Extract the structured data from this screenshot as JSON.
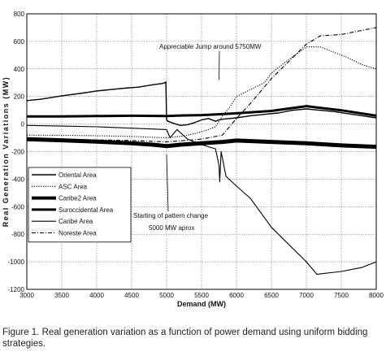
{
  "caption": "Figure 1. Real generation variation as a function of power demand using uniform bidding strategies.",
  "chart_data": {
    "type": "line",
    "title": "",
    "xlabel": "Demand (MW)",
    "ylabel": "Real Generation Variations (MW)",
    "xlim": [
      3000,
      8000
    ],
    "ylim": [
      -1200,
      800
    ],
    "xticks": [
      "3000",
      "3500",
      "4000",
      "4500",
      "5000",
      "5500",
      "6000",
      "6500",
      "7000",
      "7500",
      "8000"
    ],
    "yticks": [
      "800",
      "600",
      "400",
      "200",
      "0",
      "-200",
      "-400",
      "-600",
      "-800",
      "-1000",
      "-1200"
    ],
    "grid": true,
    "legend_position": "bottom-left",
    "annotations": [
      {
        "text": "Appreciable Jump around 5750MW",
        "x": 5750,
        "y": 320
      },
      {
        "text": "Starting of pattern change",
        "text2": "5000 MW aprox",
        "x": 5000,
        "y": -300
      }
    ],
    "series": [
      {
        "name": "Oriental Area",
        "style": "solid",
        "width": 1.4,
        "x": [
          3000,
          3200,
          3500,
          3800,
          4000,
          4200,
          4400,
          4600,
          4800,
          4950,
          4990,
          5000,
          5020,
          5100,
          5200,
          5300,
          5400,
          5500,
          5600,
          5700,
          5750,
          5800,
          5900,
          6000,
          6200,
          6400,
          6600,
          6800,
          7000,
          7200,
          7400,
          7600,
          7800,
          8000
        ],
        "y": [
          170,
          180,
          205,
          225,
          240,
          250,
          260,
          268,
          285,
          295,
          305,
          30,
          20,
          5,
          -10,
          -5,
          10,
          30,
          40,
          20,
          30,
          35,
          40,
          45,
          60,
          70,
          80,
          100,
          110,
          100,
          90,
          75,
          60,
          45
        ]
      },
      {
        "name": "ASC Area",
        "style": "dotted",
        "width": 1.1,
        "x": [
          3000,
          3500,
          4000,
          4500,
          5000,
          5200,
          5400,
          5600,
          5700,
          5800,
          5900,
          6000,
          6200,
          6400,
          6500,
          6700,
          7000,
          7200,
          7400,
          7600,
          7800,
          8000
        ],
        "y": [
          -80,
          -82,
          -85,
          -90,
          -100,
          -90,
          -70,
          -40,
          -20,
          60,
          120,
          200,
          250,
          300,
          370,
          450,
          560,
          560,
          520,
          480,
          430,
          400
        ]
      },
      {
        "name": "Caribe2 Area",
        "style": "solid",
        "width": 5,
        "x": [
          3000,
          3500,
          4000,
          4500,
          4800,
          5000,
          5200,
          5500,
          5800,
          6000,
          6500,
          7000,
          7500,
          8000
        ],
        "y": [
          -110,
          -118,
          -128,
          -140,
          -150,
          -160,
          -150,
          -140,
          -130,
          -120,
          -130,
          -140,
          -155,
          -165
        ]
      },
      {
        "name": "Suroccidental Area",
        "style": "solid",
        "width": 3,
        "x": [
          3000,
          3500,
          4000,
          4500,
          5000,
          5200,
          5500,
          5800,
          6000,
          6500,
          7000,
          7500,
          8000
        ],
        "y": [
          55,
          55,
          58,
          60,
          58,
          62,
          65,
          72,
          78,
          95,
          130,
          100,
          60
        ]
      },
      {
        "name": "Caribe Area",
        "style": "solid",
        "width": 1.1,
        "x": [
          3000,
          3500,
          4000,
          4500,
          5000,
          5050,
          5150,
          5300,
          5500,
          5700,
          5750,
          5760,
          5780,
          5800,
          5850,
          6000,
          6200,
          6500,
          7000,
          7150,
          7500,
          7800,
          8000
        ],
        "y": [
          -10,
          -15,
          -20,
          -30,
          -40,
          -100,
          -40,
          -110,
          -150,
          -180,
          -300,
          -420,
          -200,
          -250,
          -380,
          -450,
          -540,
          -750,
          -1000,
          -1090,
          -1070,
          -1040,
          -1000
        ]
      },
      {
        "name": "Noreste Area",
        "style": "dashdot",
        "width": 1.1,
        "x": [
          3000,
          3500,
          4000,
          4500,
          5000,
          5500,
          5800,
          6000,
          6200,
          6500,
          6800,
          7000,
          7200,
          7500,
          7800,
          8000
        ],
        "y": [
          -110,
          -112,
          -115,
          -120,
          -130,
          -110,
          -80,
          40,
          150,
          330,
          480,
          580,
          640,
          650,
          680,
          700
        ]
      }
    ]
  }
}
